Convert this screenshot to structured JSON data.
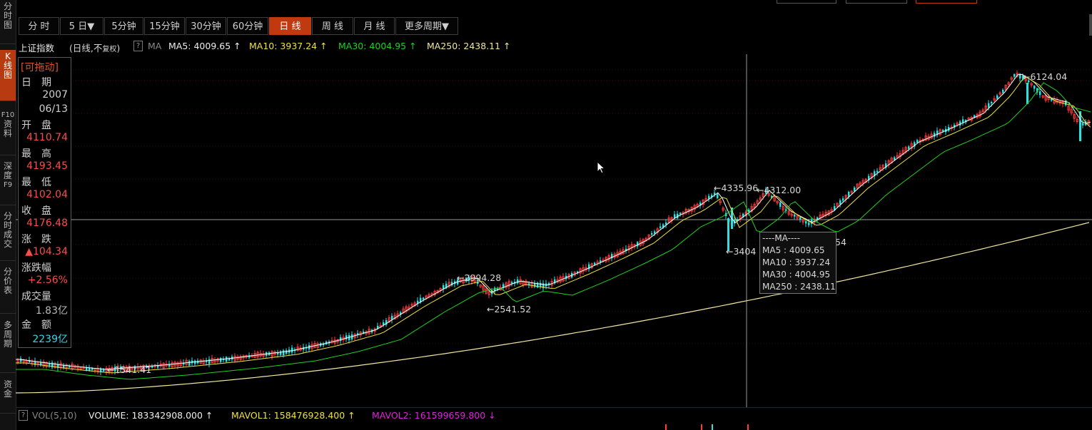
{
  "sidebar": {
    "tabs": [
      {
        "label": [
          "分",
          "时",
          "图"
        ],
        "active": false
      },
      {
        "label": [
          "K",
          "线",
          "图"
        ],
        "active": true
      },
      {
        "label": [
          "F10",
          "资",
          "料"
        ],
        "active": false
      },
      {
        "label": [
          "深",
          "度",
          "F9"
        ],
        "active": false
      },
      {
        "label": [
          "分",
          "时",
          "成",
          "交"
        ],
        "active": false
      },
      {
        "label": [
          "分",
          "价",
          "表"
        ],
        "active": false
      },
      {
        "label": [
          "多",
          "周",
          "期"
        ],
        "active": false
      },
      {
        "label": [
          "资",
          "金"
        ],
        "active": false
      }
    ]
  },
  "toolbar": {
    "periods": [
      "分 时",
      "5 日▼",
      "5分钟",
      "15分钟",
      "30分钟",
      "60分钟",
      "日 线",
      "周 线",
      "月 线",
      "更多周期▼"
    ],
    "active_period": "日 线"
  },
  "ma_bar": {
    "title": "上证指数",
    "subtitle_prefix": "(日线,不",
    "subtitle_small": "复权",
    "subtitle_suffix": ")",
    "help": "?",
    "ma_label": "MA",
    "ma5": "MA5: 4009.65 ↑",
    "ma10": "MA10: 3937.24 ↑",
    "ma30": "MA30: 4004.95 ↑",
    "ma250": "MA250: 2438.11 ↑"
  },
  "info_panel": {
    "draggable": "[可拖动]",
    "date_label": "日　期",
    "year": "2007",
    "date": "06/13",
    "open_label": "开　盘",
    "open": "4110.74",
    "high_label": "最　高",
    "high": "4193.45",
    "low_label": "最　低",
    "low": "4102.04",
    "close_label": "收　盘",
    "close": "4176.48",
    "change_label": "涨　跌",
    "change": "▲104.34",
    "pct_label": "涨跌幅",
    "pct": "+2.56%",
    "volume_label": "成交量",
    "volume": "1.83亿",
    "amount_label": "金　额",
    "amount": "2239亿"
  },
  "chart_annotations": {
    "peak_high": "6124.04",
    "high_a": "4335.96",
    "high_b": "4312.00",
    "low_a": "3404",
    "low_b": "54",
    "high_c": "2994.28",
    "low_c": "2541.52",
    "low_d": "1541.41"
  },
  "tooltip": {
    "title": "----MA----",
    "ma5": "MA5 : 4009.65",
    "ma10": "MA10 : 3937.24",
    "ma30": "MA30 : 4004.95",
    "ma250": "MA250 : 2438.11"
  },
  "volume_bar": {
    "help": "?",
    "label": "VOL(5,10)",
    "volume": "VOLUME: 183342908.000 ↑",
    "mavol1": "MAVOL1: 158476928.400 ↑",
    "mavol2": "MAVOL2: 161599659.800 ↓"
  },
  "colors": {
    "up": "#ff3b3b",
    "down": "#2fe0e0",
    "ma5": "#ffffff",
    "ma10": "#f0e040",
    "ma30": "#20d020",
    "ma250": "#f0e6a0",
    "accent": "#c0390f",
    "mavol2": "#e020e0"
  }
}
